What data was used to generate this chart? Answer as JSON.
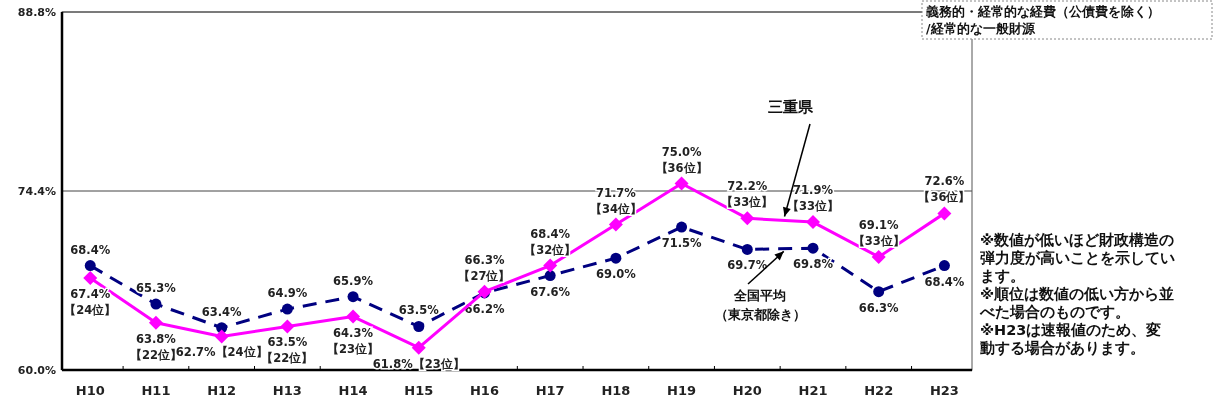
{
  "chart_data": {
    "type": "line",
    "categories": [
      "H10",
      "H11",
      "H12",
      "H13",
      "H14",
      "H15",
      "H16",
      "H17",
      "H18",
      "H19",
      "H20",
      "H21",
      "H22",
      "H23"
    ],
    "series": [
      {
        "name": "全国平均（東京都除き）",
        "color": "#000080",
        "marker": "circle",
        "line_style": "dashed",
        "values": [
          68.4,
          65.3,
          63.4,
          64.9,
          65.9,
          63.5,
          66.2,
          67.6,
          69.0,
          71.5,
          69.7,
          69.8,
          66.3,
          68.4
        ],
        "value_labels": [
          "68.4%",
          "65.3%",
          "63.4%",
          "64.9%",
          "65.9%",
          "63.5%",
          "66.2%",
          "67.6%",
          "69.0%",
          "71.5%",
          "69.7%",
          "69.8%",
          "66.3%",
          "68.4%"
        ]
      },
      {
        "name": "三重県",
        "color": "#ff00ff",
        "marker": "diamond",
        "line_style": "solid",
        "values": [
          67.4,
          63.8,
          62.7,
          63.5,
          64.3,
          61.8,
          66.3,
          68.4,
          71.7,
          75.0,
          72.2,
          71.9,
          69.1,
          72.6
        ],
        "value_labels": [
          "67.4%【24位】",
          "63.8%【22位】",
          "62.7%【24位】",
          "63.5%【22位】",
          "64.3%【23位】",
          "61.8%【23位】",
          "66.3%【27位】",
          "68.4%【32位】",
          "71.7%【34位】",
          "75.0%【36位】",
          "72.2%【33位】",
          "71.9%【33位】",
          "69.1%【33位】",
          "72.6%【36位】"
        ]
      }
    ],
    "ylim": [
      60,
      88.8
    ],
    "yticks": [
      {
        "value": 60,
        "label": "60.0%"
      },
      {
        "value": 74.4,
        "label": "74.4%"
      },
      {
        "value": 88.8,
        "label": "88.8%"
      }
    ],
    "grid": "y",
    "legend": false,
    "annotations": [
      "義務的・経常的な経費（公債費を除く）/経常的な一般財源",
      "※数値が低いほど財政構造の弾力度が高いことを示しています。",
      "※順位は数値の低い方から並べた場合のものです。",
      "※H23は速報値のため、変動する場合があります。"
    ]
  }
}
